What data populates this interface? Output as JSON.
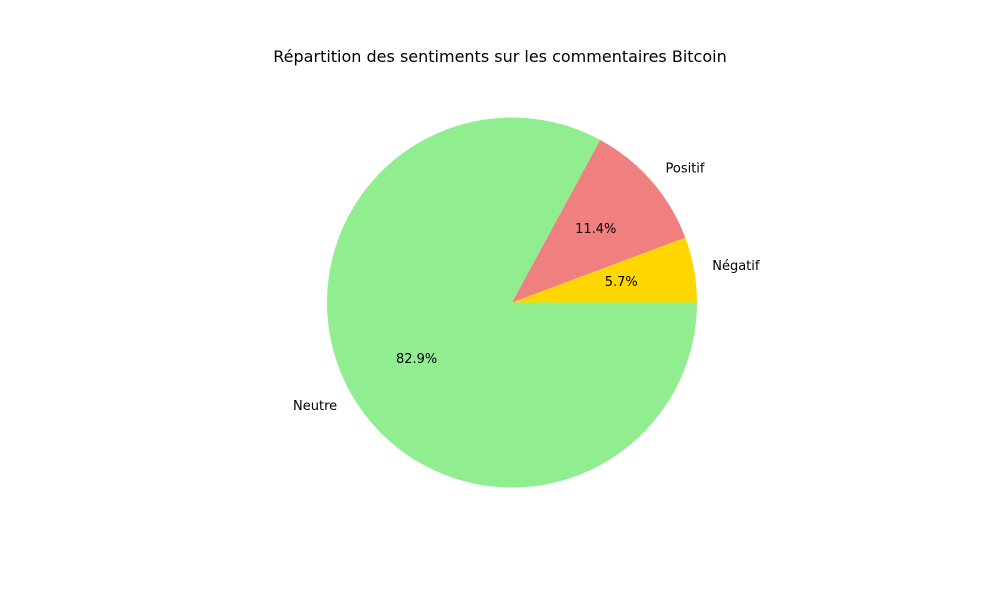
{
  "chart_data": {
    "type": "pie",
    "title": "Répartition des sentiments sur les commentaires Bitcoin",
    "slices": [
      {
        "label": "Négatif",
        "value": 5.7,
        "pct_label": "5.7%",
        "color": "#ffd700"
      },
      {
        "label": "Positif",
        "value": 11.4,
        "pct_label": "11.4%",
        "color": "#f08080"
      },
      {
        "label": "Neutre",
        "value": 82.9,
        "pct_label": "82.9%",
        "color": "#90ee90"
      }
    ]
  }
}
